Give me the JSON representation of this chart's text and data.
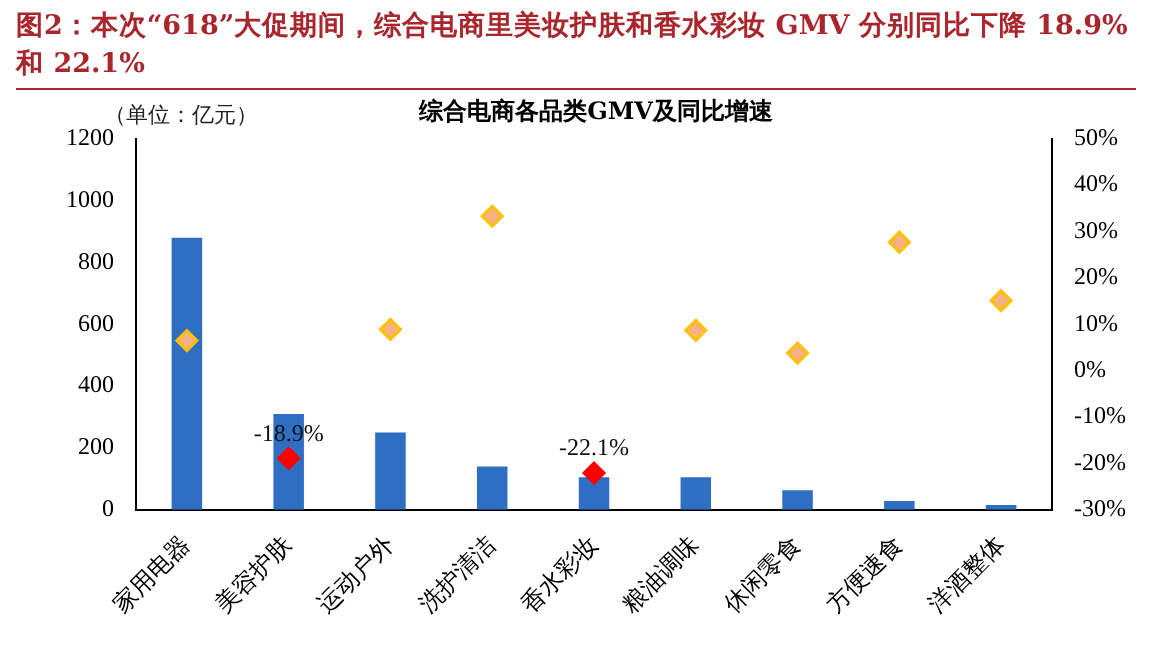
{
  "chart_data": {
    "type": "bar",
    "title": "图2：本次“618”大促期间，综合电商里美妆护肤和香水彩妆 GMV 分别同比下降 18.9%和 22.1%",
    "subtitle": "综合电商各品类GMV及同比增速",
    "ylabel": "（单位：亿元）",
    "categories": [
      "家用电器",
      "美容护肤",
      "运动户外",
      "洗护清洁",
      "香水彩妆",
      "粮油调味",
      "休闲零食",
      "方便速食",
      "洋酒整体"
    ],
    "series": [
      {
        "color": "#2e6fc4",
        "values": [
          880,
          310,
          250,
          140,
          105,
          105,
          63,
          28,
          15
        ]
      },
      {
        "type": "scatter",
        "axis": "y2",
        "color": "#f4b183",
        "colors": [
          "#f4b183",
          "#ff0000",
          "#f4b183",
          "#f4b183",
          "#ff0000",
          "#f4b183",
          "#f4b183",
          "#f4b183",
          "#f4b183"
        ],
        "values": [
          6.5,
          -18.9,
          8.9,
          33.3,
          -22.1,
          8.7,
          3.8,
          27.7,
          15.1
        ],
        "value_labels": [
          null,
          "-18.9%",
          null,
          null,
          "-22.1%",
          null,
          null,
          null,
          null
        ]
      }
    ],
    "ylim": [
      0,
      1200
    ],
    "yticks": [
      0,
      200,
      400,
      600,
      800,
      1000,
      1200
    ],
    "y2lim": [
      -30,
      50
    ],
    "y2ticks": [
      {
        "value": -30,
        "label": "-30%"
      },
      {
        "value": -20,
        "label": "-20%"
      },
      {
        "value": -10,
        "label": "-10%"
      },
      {
        "value": 0,
        "label": "0%"
      },
      {
        "value": 10,
        "label": "10%"
      },
      {
        "value": 20,
        "label": "20%"
      },
      {
        "value": 30,
        "label": "30%"
      },
      {
        "value": 40,
        "label": "40%"
      },
      {
        "value": 50,
        "label": "50%"
      }
    ],
    "marker": "diamond",
    "grid": false,
    "legend": false
  }
}
